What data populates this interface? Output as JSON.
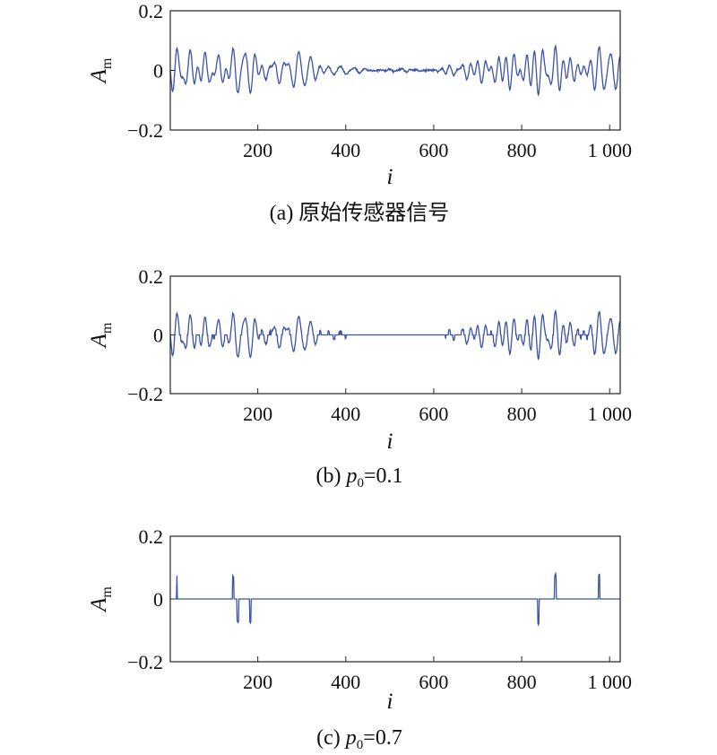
{
  "chart_data": [
    {
      "type": "line",
      "caption": "(a) 原始传感器信号",
      "caption_parts": {
        "prefix": "(a) 原始传感器信号",
        "var": "",
        "sub": "",
        "suffix": ""
      },
      "xlabel": "i",
      "ylabel": {
        "main": "A",
        "sub": "m"
      },
      "xlim": [
        1,
        1024
      ],
      "ylim": [
        -0.2,
        0.2
      ],
      "xticks": [
        200,
        400,
        600,
        800,
        1000
      ],
      "xtick_labels": [
        "200",
        "400",
        "600",
        "800",
        "1 000"
      ],
      "yticks": [
        -0.2,
        0,
        0.2
      ],
      "ytick_labels": [
        "−0.2",
        "0",
        "0.2"
      ],
      "series_color": "#3a53a4",
      "series": [
        {
          "name": "",
          "seed": 11,
          "threshold": 0
        }
      ]
    },
    {
      "type": "line",
      "caption": "(b) p0=0.1",
      "caption_parts": {
        "prefix": "(b) ",
        "var": "p",
        "sub": "0",
        "suffix": "=0.1"
      },
      "xlabel": "i",
      "ylabel": {
        "main": "A",
        "sub": "m"
      },
      "xlim": [
        1,
        1024
      ],
      "ylim": [
        -0.2,
        0.2
      ],
      "xticks": [
        200,
        400,
        600,
        800,
        1000
      ],
      "xtick_labels": [
        "200",
        "400",
        "600",
        "800",
        "1 000"
      ],
      "yticks": [
        -0.2,
        0,
        0.2
      ],
      "ytick_labels": [
        "−0.2",
        "0",
        "0.2"
      ],
      "series_color": "#3a53a4",
      "series": [
        {
          "name": "",
          "seed": 11,
          "threshold": 0.012
        }
      ]
    },
    {
      "type": "line",
      "caption": "(c) p0=0.7",
      "caption_parts": {
        "prefix": "(c) ",
        "var": "p",
        "sub": "0",
        "suffix": "=0.7"
      },
      "xlabel": "i",
      "ylabel": {
        "main": "A",
        "sub": "m"
      },
      "xlim": [
        1,
        1024
      ],
      "ylim": [
        -0.2,
        0.2
      ],
      "xticks": [
        200,
        400,
        600,
        800,
        1000
      ],
      "xtick_labels": [
        "200",
        "400",
        "600",
        "800",
        "1 000"
      ],
      "yticks": [
        -0.2,
        0,
        0.2
      ],
      "ytick_labels": [
        "−0.2",
        "0",
        "0.2"
      ],
      "series_color": "#3a53a4",
      "series": [
        {
          "name": "",
          "seed": 11,
          "threshold": 0.07
        }
      ]
    }
  ]
}
